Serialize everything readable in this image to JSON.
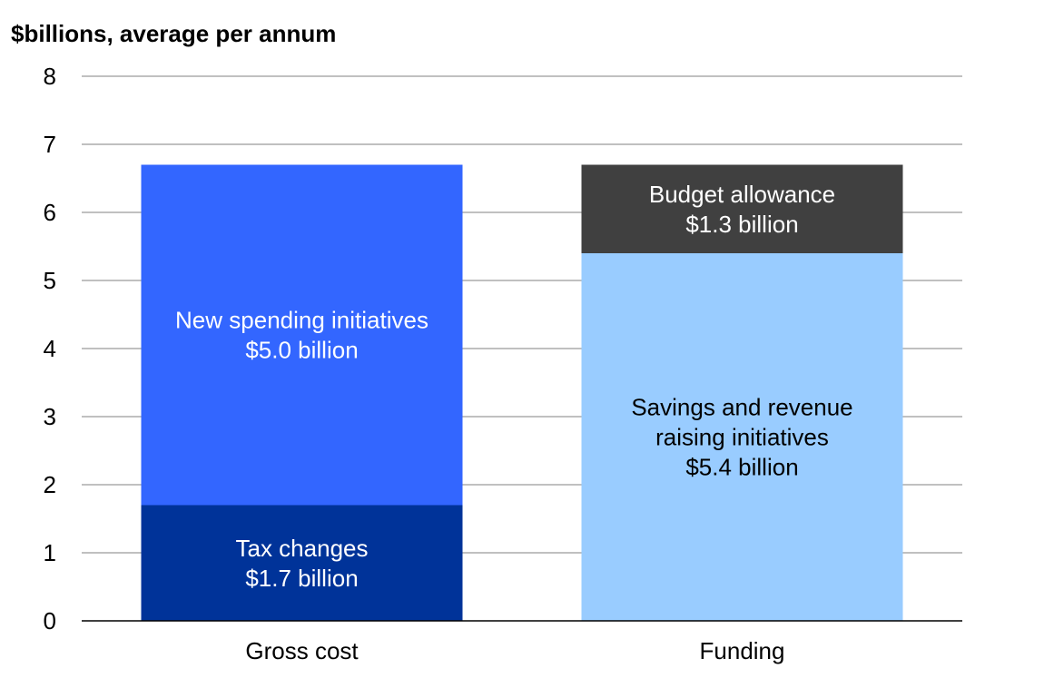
{
  "chart_data": {
    "type": "bar",
    "stacked": true,
    "ylabel": "$billions, average per annum",
    "xlabel": "",
    "ylim": [
      0,
      8
    ],
    "yticks": [
      "0",
      "1",
      "2",
      "3",
      "4",
      "5",
      "6",
      "7",
      "8"
    ],
    "grid": true,
    "legend": "none",
    "categories": [
      "Gross cost",
      "Funding"
    ],
    "bars": [
      {
        "category": "Gross cost",
        "segments": [
          {
            "value": 1.7,
            "label_lines": [
              "Tax changes",
              "$1.7 billion"
            ],
            "color": "#003399",
            "text_color": "#ffffff"
          },
          {
            "value": 5.0,
            "label_lines": [
              "New spending initiatives",
              "$5.0 billion"
            ],
            "color": "#3366ff",
            "text_color": "#ffffff"
          }
        ]
      },
      {
        "category": "Funding",
        "segments": [
          {
            "value": 5.4,
            "label_lines": [
              "Savings and revenue",
              "raising initiatives",
              "$5.4 billion"
            ],
            "color": "#99ccff",
            "text_color": "#000000"
          },
          {
            "value": 1.3,
            "label_lines": [
              "Budget allowance",
              "$1.3 billion"
            ],
            "color": "#404040",
            "text_color": "#ffffff"
          }
        ]
      }
    ],
    "colors": {
      "gridline": "#808080",
      "axis": "#000000",
      "text": "#000000"
    }
  }
}
